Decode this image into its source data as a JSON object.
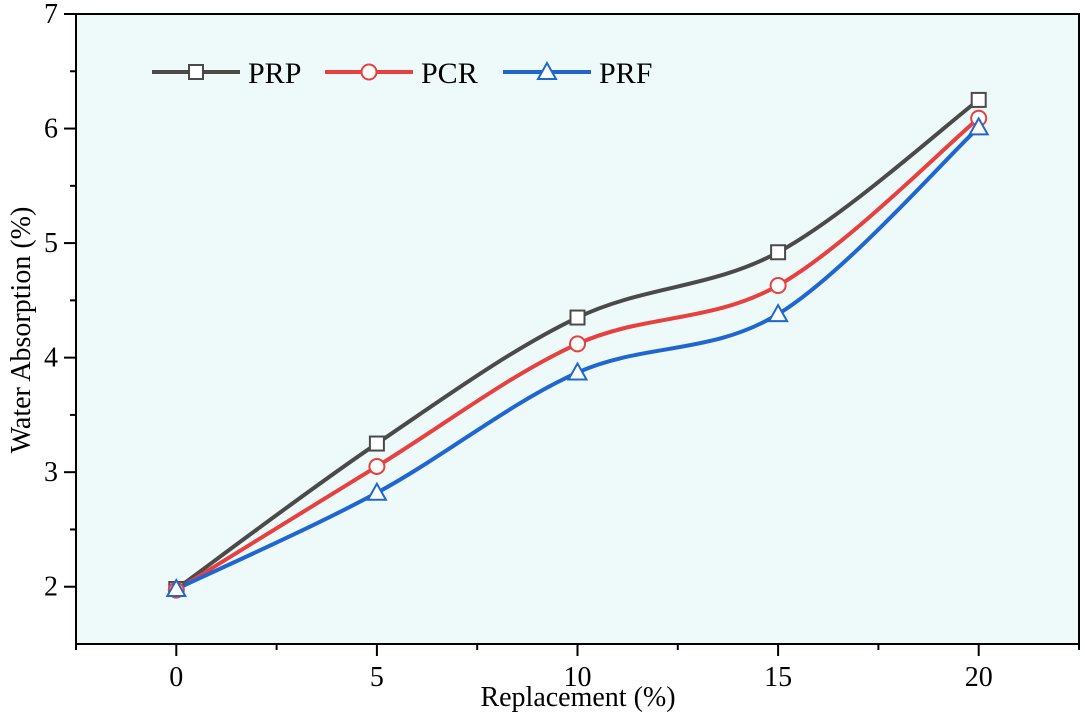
{
  "chart_data": {
    "type": "line",
    "xlabel": "Replacement (%)",
    "ylabel": "Water Absorption (%)",
    "x": [
      0,
      5,
      10,
      15,
      20
    ],
    "xlim": [
      -2.5,
      22.5
    ],
    "ylim": [
      1.5,
      7
    ],
    "xticks": [
      0,
      5,
      10,
      15,
      20
    ],
    "yticks": [
      2,
      3,
      4,
      5,
      6,
      7
    ],
    "grid": false,
    "legend_position": "top-left",
    "plot_background": "#eefafa",
    "series": [
      {
        "name": "PRP",
        "values": [
          1.98,
          3.25,
          4.35,
          4.92,
          6.25
        ],
        "color": "#4a4a4a",
        "marker": "square"
      },
      {
        "name": "PCR",
        "values": [
          1.97,
          3.05,
          4.12,
          4.63,
          6.09
        ],
        "color": "#e8403f",
        "marker": "circle"
      },
      {
        "name": "PRF",
        "values": [
          1.98,
          2.82,
          3.87,
          4.38,
          6.01
        ],
        "color": "#1f66d1",
        "marker": "triangle"
      }
    ]
  }
}
